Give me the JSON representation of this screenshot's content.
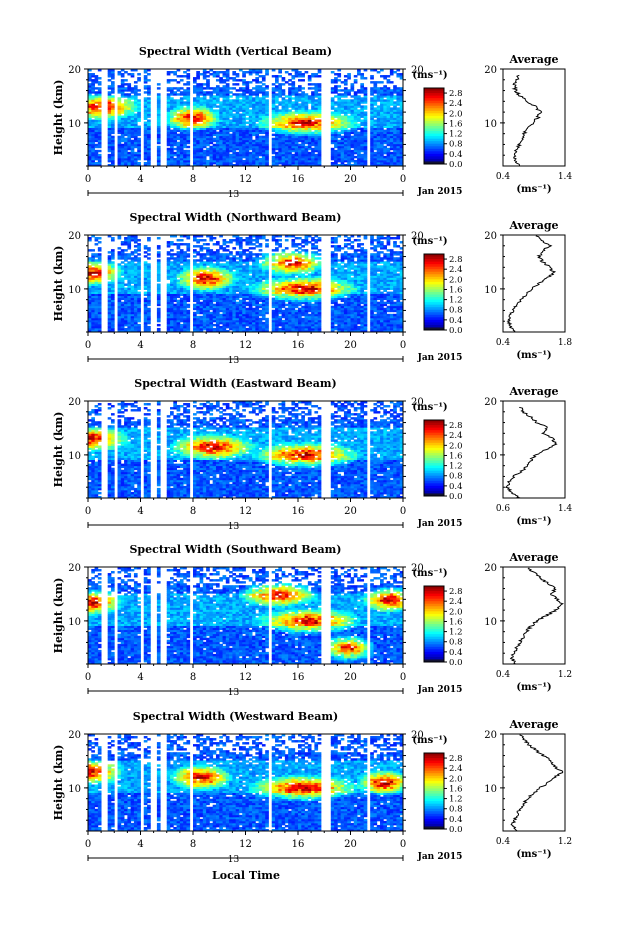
{
  "figure": {
    "shared_xlabel": "Local Time",
    "date_label": "Jan 2015",
    "day_label": "13"
  },
  "chart_data": [
    {
      "type": "heatmap",
      "title": "Spectral Width (Vertical Beam)",
      "ylabel": "Height (km)",
      "xlabel": "Local Time",
      "xlim": [
        0,
        24
      ],
      "ylim": [
        2,
        20
      ],
      "x_ticks": [
        "0",
        "4",
        "8",
        "12",
        "16",
        "20",
        "0"
      ],
      "y_ticks": [
        "20",
        "10"
      ],
      "colorbar": {
        "unit": "(ms⁻¹)",
        "ticks": [
          "2.8",
          "2.4",
          "2.0",
          "1.6",
          "1.2",
          "0.8",
          "0.4",
          "0.0"
        ],
        "range": [
          0,
          3.0
        ]
      },
      "data_gaps_hours": [
        [
          0.9,
          1.4
        ],
        [
          1.9,
          2.3
        ],
        [
          4.0,
          4.3
        ],
        [
          4.7,
          5.2
        ],
        [
          5.6,
          6.0
        ],
        [
          7.7,
          8.1
        ],
        [
          13.7,
          14.1
        ],
        [
          17.8,
          18.5
        ],
        [
          21.2,
          21.5
        ]
      ],
      "enhanced_regions": [
        {
          "hour": 1.0,
          "height_km": 13,
          "width": 2.0
        },
        {
          "hour": 16.7,
          "height_km": 10,
          "width": 2.6
        },
        {
          "hour": 8.0,
          "height_km": 11,
          "width": 1.4
        }
      ],
      "average_profile": {
        "title": "Average",
        "xlabel": "(ms⁻¹)",
        "xlim": [
          0.4,
          1.4
        ],
        "x_ticks": [
          "0.4",
          "1.4"
        ],
        "y_ticks": [
          "20",
          "10"
        ],
        "height_km": [
          2,
          3,
          4,
          5,
          6,
          7,
          8,
          9,
          10,
          11,
          12,
          13,
          14,
          15,
          16,
          17,
          18,
          19
        ],
        "values": [
          0.66,
          0.6,
          0.58,
          0.62,
          0.66,
          0.7,
          0.74,
          0.8,
          0.88,
          0.96,
          1.0,
          0.92,
          0.8,
          0.68,
          0.6,
          0.58,
          0.62,
          0.66
        ]
      }
    },
    {
      "type": "heatmap",
      "title": "Spectral Width (Northward Beam)",
      "ylabel": "Height (km)",
      "xlabel": "Local Time",
      "xlim": [
        0,
        24
      ],
      "ylim": [
        2,
        20
      ],
      "x_ticks": [
        "0",
        "4",
        "8",
        "12",
        "16",
        "20",
        "0"
      ],
      "y_ticks": [
        "20",
        "10"
      ],
      "colorbar": {
        "unit": "(ms⁻¹)",
        "ticks": [
          "2.8",
          "2.4",
          "2.0",
          "1.6",
          "1.2",
          "0.8",
          "0.4",
          "0.0"
        ],
        "range": [
          0,
          3.0
        ]
      },
      "data_gaps_hours": [
        [
          0.9,
          1.4
        ],
        [
          1.9,
          2.3
        ],
        [
          4.0,
          4.3
        ],
        [
          4.7,
          5.2
        ],
        [
          5.6,
          6.0
        ],
        [
          7.7,
          8.1
        ],
        [
          13.7,
          14.1
        ],
        [
          17.8,
          18.5
        ],
        [
          21.2,
          21.5
        ]
      ],
      "enhanced_regions": [
        {
          "hour": 0.3,
          "height_km": 13,
          "width": 1.6
        },
        {
          "hour": 16.5,
          "height_km": 10,
          "width": 2.8
        },
        {
          "hour": 9.0,
          "height_km": 12,
          "width": 1.6
        },
        {
          "hour": 15.5,
          "height_km": 15,
          "width": 1.8
        }
      ],
      "average_profile": {
        "title": "Average",
        "xlabel": "(ms⁻¹)",
        "xlim": [
          0.4,
          1.8
        ],
        "x_ticks": [
          "0.4",
          "1.8"
        ],
        "y_ticks": [
          "20",
          "10"
        ],
        "height_km": [
          2,
          3,
          4,
          5,
          6,
          7,
          8,
          9,
          10,
          11,
          12,
          13,
          14,
          15,
          16,
          17,
          18,
          19,
          20
        ],
        "values": [
          0.64,
          0.56,
          0.52,
          0.56,
          0.62,
          0.7,
          0.8,
          0.92,
          1.06,
          1.2,
          1.4,
          1.55,
          1.45,
          1.3,
          1.2,
          1.3,
          1.45,
          1.3,
          1.1
        ]
      }
    },
    {
      "type": "heatmap",
      "title": "Spectral Width (Eastward Beam)",
      "ylabel": "Height (km)",
      "xlabel": "Local Time",
      "xlim": [
        0,
        24
      ],
      "ylim": [
        2,
        20
      ],
      "x_ticks": [
        "0",
        "4",
        "8",
        "12",
        "16",
        "20",
        "0"
      ],
      "y_ticks": [
        "20",
        "10"
      ],
      "colorbar": {
        "unit": "(ms⁻¹)",
        "ticks": [
          "2.8",
          "2.4",
          "2.0",
          "1.6",
          "1.2",
          "0.8",
          "0.4",
          "0.0"
        ],
        "range": [
          0,
          3.0
        ]
      },
      "data_gaps_hours": [
        [
          0.9,
          1.4
        ],
        [
          1.9,
          2.3
        ],
        [
          4.0,
          4.3
        ],
        [
          4.7,
          5.2
        ],
        [
          5.6,
          6.0
        ],
        [
          7.7,
          8.1
        ],
        [
          13.7,
          14.1
        ],
        [
          17.8,
          18.5
        ],
        [
          21.2,
          21.5
        ]
      ],
      "enhanced_regions": [
        {
          "hour": 0.4,
          "height_km": 13,
          "width": 1.8
        },
        {
          "hour": 16.6,
          "height_km": 10,
          "width": 2.8
        },
        {
          "hour": 9.5,
          "height_km": 11.5,
          "width": 2.2
        }
      ],
      "average_profile": {
        "title": "Average",
        "xlabel": "(ms⁻¹)",
        "xlim": [
          0.6,
          1.4
        ],
        "x_ticks": [
          "0.6",
          "1.4"
        ],
        "y_ticks": [
          "20",
          "10"
        ],
        "height_km": [
          2,
          3,
          4,
          5,
          6,
          7,
          8,
          9,
          10,
          11,
          12,
          13,
          14,
          15,
          16,
          17,
          18,
          19
        ],
        "values": [
          0.82,
          0.72,
          0.66,
          0.68,
          0.74,
          0.84,
          0.92,
          0.96,
          1.02,
          1.16,
          1.28,
          1.24,
          1.12,
          1.18,
          1.04,
          0.96,
          0.86,
          0.82
        ]
      }
    },
    {
      "type": "heatmap",
      "title": "Spectral Width (Southward Beam)",
      "ylabel": "Height (km)",
      "xlabel": "Local Time",
      "xlim": [
        0,
        24
      ],
      "ylim": [
        2,
        20
      ],
      "x_ticks": [
        "0",
        "4",
        "8",
        "12",
        "16",
        "20",
        "0"
      ],
      "y_ticks": [
        "20",
        "10"
      ],
      "colorbar": {
        "unit": "(ms⁻¹)",
        "ticks": [
          "2.8",
          "2.4",
          "2.0",
          "1.6",
          "1.2",
          "0.8",
          "0.4",
          "0.0"
        ],
        "range": [
          0,
          3.0
        ]
      },
      "data_gaps_hours": [
        [
          0.9,
          1.4
        ],
        [
          1.9,
          2.3
        ],
        [
          4.0,
          4.3
        ],
        [
          4.7,
          5.2
        ],
        [
          5.6,
          6.0
        ],
        [
          7.7,
          8.1
        ],
        [
          13.7,
          14.1
        ],
        [
          17.8,
          18.5
        ],
        [
          21.2,
          21.5
        ]
      ],
      "enhanced_regions": [
        {
          "hour": 0.3,
          "height_km": 13.5,
          "width": 1.6
        },
        {
          "hour": 16.8,
          "height_km": 10,
          "width": 2.6
        },
        {
          "hour": 19.8,
          "height_km": 5,
          "width": 1.4
        },
        {
          "hour": 14.5,
          "height_km": 15,
          "width": 2.0
        },
        {
          "hour": 23.0,
          "height_km": 14,
          "width": 1.4
        }
      ],
      "average_profile": {
        "title": "Average",
        "xlabel": "(ms⁻¹)",
        "xlim": [
          0.4,
          1.2
        ],
        "x_ticks": [
          "0.4",
          "1.2"
        ],
        "y_ticks": [
          "20",
          "10"
        ],
        "height_km": [
          2,
          3,
          4,
          5,
          6,
          7,
          8,
          9,
          10,
          11,
          12,
          13,
          14,
          15,
          16,
          17,
          18,
          19,
          20
        ],
        "values": [
          0.56,
          0.52,
          0.54,
          0.58,
          0.62,
          0.66,
          0.7,
          0.76,
          0.84,
          0.96,
          1.08,
          1.16,
          1.1,
          1.02,
          1.08,
          0.98,
          0.88,
          0.8,
          0.7
        ]
      }
    },
    {
      "type": "heatmap",
      "title": "Spectral Width (Westward Beam)",
      "ylabel": "Height (km)",
      "xlabel": "Local Time",
      "xlim": [
        0,
        24
      ],
      "ylim": [
        2,
        20
      ],
      "x_ticks": [
        "0",
        "4",
        "8",
        "12",
        "16",
        "20",
        "0"
      ],
      "y_ticks": [
        "20",
        "10"
      ],
      "colorbar": {
        "unit": "(ms⁻¹)",
        "ticks": [
          "2.8",
          "2.4",
          "2.0",
          "1.6",
          "1.2",
          "0.8",
          "0.4",
          "0.0"
        ],
        "range": [
          0,
          3.0
        ]
      },
      "data_gaps_hours": [
        [
          0.9,
          1.4
        ],
        [
          1.9,
          2.3
        ],
        [
          4.0,
          4.3
        ],
        [
          4.7,
          5.2
        ],
        [
          5.6,
          6.0
        ],
        [
          7.7,
          8.1
        ],
        [
          13.7,
          14.1
        ],
        [
          17.8,
          18.5
        ],
        [
          21.2,
          21.5
        ]
      ],
      "enhanced_regions": [
        {
          "hour": 0.3,
          "height_km": 13,
          "width": 1.6
        },
        {
          "hour": 16.4,
          "height_km": 10,
          "width": 2.8
        },
        {
          "hour": 8.6,
          "height_km": 12,
          "width": 1.6
        },
        {
          "hour": 22.6,
          "height_km": 11,
          "width": 1.4
        }
      ],
      "average_profile": {
        "title": "Average",
        "xlabel": "(ms⁻¹)",
        "xlim": [
          0.4,
          1.2
        ],
        "x_ticks": [
          "0.4",
          "1.2"
        ],
        "y_ticks": [
          "20",
          "10"
        ],
        "height_km": [
          2,
          3,
          4,
          5,
          6,
          7,
          8,
          9,
          10,
          11,
          12,
          13,
          14,
          15,
          16,
          17,
          18,
          19,
          20
        ],
        "values": [
          0.58,
          0.52,
          0.54,
          0.58,
          0.62,
          0.66,
          0.72,
          0.8,
          0.88,
          0.98,
          1.08,
          1.16,
          1.06,
          1.02,
          0.92,
          0.82,
          0.74,
          0.68,
          0.62
        ]
      }
    }
  ]
}
